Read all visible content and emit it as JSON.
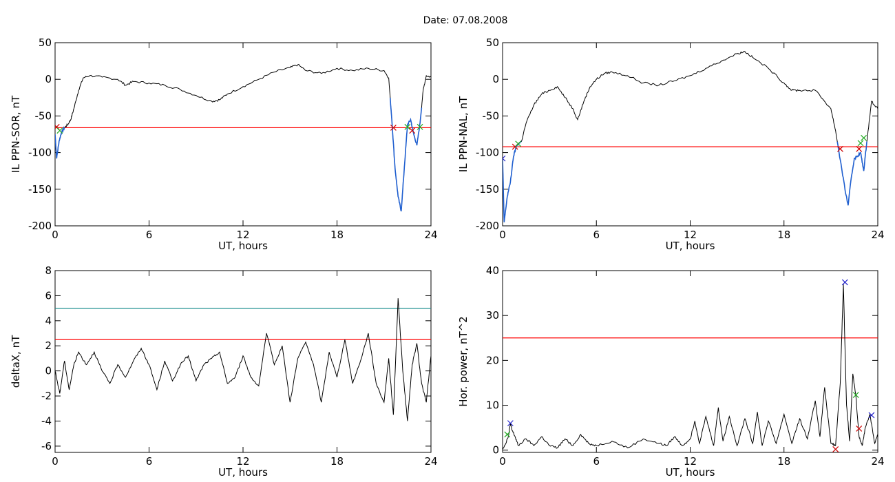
{
  "figure": {
    "title": "Date:  07.08.2008"
  },
  "chart_data": [
    {
      "id": "p1",
      "type": "line",
      "ylabel": "IL PPN-SOR, nT",
      "xlabel": "UT, hours",
      "xlim": [
        0,
        24
      ],
      "ylim": [
        -200,
        50
      ],
      "xticks": [
        0,
        6,
        12,
        18,
        24
      ],
      "yticks": [
        -200,
        -150,
        -100,
        -50,
        0,
        50
      ],
      "colors": {
        "line": "#000000",
        "highlight": "#1f5fd0",
        "threshold": "#ff0000"
      },
      "thresholds": [
        {
          "value": -66,
          "color": "#ff0000"
        }
      ],
      "series": [
        {
          "x": [
            0,
            0.1,
            0.25,
            0.4,
            0.6,
            0.8,
            1.0,
            1.2,
            1.5,
            1.8,
            2.2,
            3.0,
            4.0,
            4.5,
            5.0,
            6.0,
            7.0,
            8.0,
            9.0,
            10.0,
            10.5,
            11.0,
            12.0,
            13.0,
            14.0,
            15.0,
            15.5,
            16.0,
            17.0,
            18.0,
            19.0,
            20.0,
            21.0,
            21.3,
            21.5,
            21.7,
            21.9,
            22.1,
            22.3,
            22.5,
            22.7,
            22.9,
            23.1,
            23.3,
            23.5,
            23.7,
            24.0
          ],
          "values": [
            -75,
            -108,
            -85,
            -73,
            -66,
            -62,
            -55,
            -40,
            -15,
            2,
            5,
            3,
            0,
            -8,
            -3,
            -5,
            -8,
            -14,
            -22,
            -30,
            -28,
            -20,
            -10,
            0,
            10,
            16,
            20,
            12,
            8,
            15,
            12,
            15,
            12,
            2,
            -55,
            -120,
            -160,
            -180,
            -120,
            -62,
            -55,
            -75,
            -90,
            -60,
            -15,
            5,
            3
          ]
        }
      ],
      "highlight_ranges": [
        [
          0,
          0.6
        ],
        [
          21.4,
          23.4
        ]
      ],
      "markers": [
        {
          "x": 0.1,
          "y": -65,
          "color": "#cc0000"
        },
        {
          "x": 0.3,
          "y": -70,
          "color": "#22aa22"
        },
        {
          "x": 21.6,
          "y": -66,
          "color": "#cc0000"
        },
        {
          "x": 22.5,
          "y": -65,
          "color": "#22aa22"
        },
        {
          "x": 22.8,
          "y": -70,
          "color": "#cc0000"
        },
        {
          "x": 23.3,
          "y": -65,
          "color": "#22aa22"
        }
      ]
    },
    {
      "id": "p2",
      "type": "line",
      "ylabel": "IL PPN-NAL, nT",
      "xlabel": "UT, hours",
      "xlim": [
        0,
        24
      ],
      "ylim": [
        -200,
        50
      ],
      "xticks": [
        0,
        6,
        12,
        18,
        24
      ],
      "yticks": [
        -200,
        -150,
        -100,
        -50,
        0,
        50
      ],
      "colors": {
        "line": "#000000",
        "highlight": "#1f5fd0",
        "threshold": "#ff0000"
      },
      "thresholds": [
        {
          "value": -92,
          "color": "#ff0000"
        }
      ],
      "series": [
        {
          "x": [
            0,
            0.1,
            0.3,
            0.5,
            0.7,
            0.9,
            1.2,
            1.5,
            2.0,
            2.5,
            3.0,
            3.5,
            4.0,
            4.5,
            4.8,
            5.2,
            5.6,
            6.0,
            6.5,
            7.0,
            8.0,
            9.0,
            10.0,
            11.0,
            12.0,
            13.0,
            14.0,
            15.0,
            15.5,
            16.0,
            17.0,
            18.0,
            18.5,
            19.0,
            20.0,
            21.0,
            21.3,
            21.6,
            21.9,
            22.1,
            22.3,
            22.5,
            22.7,
            22.9,
            23.1,
            23.3,
            23.6,
            24.0
          ],
          "values": [
            -108,
            -195,
            -160,
            -140,
            -105,
            -90,
            -85,
            -60,
            -35,
            -20,
            -15,
            -10,
            -25,
            -40,
            -55,
            -30,
            -10,
            0,
            8,
            10,
            5,
            -5,
            -8,
            -2,
            5,
            15,
            25,
            35,
            38,
            30,
            15,
            -5,
            -15,
            -15,
            -15,
            -40,
            -70,
            -110,
            -150,
            -172,
            -135,
            -108,
            -105,
            -100,
            -125,
            -85,
            -30,
            -40
          ]
        }
      ],
      "highlight_ranges": [
        [
          0,
          1.2
        ],
        [
          21.4,
          23.3
        ]
      ],
      "markers": [
        {
          "x": 0.0,
          "y": -108,
          "color": "#2222cc"
        },
        {
          "x": 0.8,
          "y": -92,
          "color": "#cc0000"
        },
        {
          "x": 1.0,
          "y": -88,
          "color": "#22aa22"
        },
        {
          "x": 21.6,
          "y": -95,
          "color": "#cc0000"
        },
        {
          "x": 22.8,
          "y": -95,
          "color": "#cc0000"
        },
        {
          "x": 22.9,
          "y": -87,
          "color": "#22aa22"
        },
        {
          "x": 23.1,
          "y": -80,
          "color": "#22aa22"
        }
      ]
    },
    {
      "id": "p3",
      "type": "line",
      "ylabel": "deltaX, nT",
      "xlabel": "UT, hours",
      "xlim": [
        0,
        24
      ],
      "ylim": [
        -6.5,
        8
      ],
      "xticks": [
        0,
        6,
        12,
        18,
        24
      ],
      "yticks": [
        -6,
        -4,
        -2,
        0,
        2,
        4,
        6,
        8
      ],
      "colors": {
        "line": "#000000",
        "threshold": "#ff0000"
      },
      "thresholds": [
        {
          "value": 5.0,
          "color": "#1f9090"
        },
        {
          "value": 2.5,
          "color": "#ff0000"
        }
      ],
      "series": [
        {
          "x": [
            0,
            0.3,
            0.6,
            0.9,
            1.2,
            1.5,
            2.0,
            2.5,
            3.0,
            3.5,
            4.0,
            4.5,
            5.0,
            5.5,
            6.0,
            6.5,
            7.0,
            7.5,
            8.0,
            8.5,
            9.0,
            9.5,
            10.0,
            10.5,
            11.0,
            11.5,
            12.0,
            12.5,
            13.0,
            13.5,
            14.0,
            14.5,
            15.0,
            15.5,
            16.0,
            16.5,
            17.0,
            17.5,
            18.0,
            18.5,
            19.0,
            19.5,
            20.0,
            20.5,
            21.0,
            21.3,
            21.6,
            21.9,
            22.2,
            22.5,
            22.8,
            23.1,
            23.4,
            23.7,
            24.0
          ],
          "values": [
            0,
            -1.8,
            0.8,
            -1.5,
            0.5,
            1.5,
            0.5,
            1.5,
            0.0,
            -1.0,
            0.5,
            -0.5,
            0.8,
            1.8,
            0.5,
            -1.5,
            0.8,
            -0.8,
            0.5,
            1.2,
            -0.8,
            0.5,
            1.0,
            1.5,
            -1.0,
            -0.5,
            1.2,
            -0.5,
            -1.2,
            3.0,
            0.5,
            2.0,
            -2.5,
            1.0,
            2.3,
            0.5,
            -2.5,
            1.5,
            -0.5,
            2.5,
            -1.0,
            0.8,
            3.0,
            -1.0,
            -2.5,
            1.0,
            -3.5,
            5.8,
            0.0,
            -4.0,
            0.5,
            2.2,
            -1.0,
            -2.5,
            1.2
          ]
        }
      ]
    },
    {
      "id": "p4",
      "type": "line",
      "ylabel": "Hor. power, nT^2",
      "xlabel": "UT, hours",
      "xlim": [
        0,
        24
      ],
      "ylim": [
        -0.5,
        40
      ],
      "xticks": [
        0,
        6,
        12,
        18,
        24
      ],
      "yticks": [
        0,
        10,
        20,
        30,
        40
      ],
      "colors": {
        "line": "#000000",
        "threshold": "#ff0000"
      },
      "thresholds": [
        {
          "value": 25,
          "color": "#ff0000"
        }
      ],
      "series": [
        {
          "x": [
            0,
            0.2,
            0.4,
            0.5,
            0.6,
            0.8,
            1.0,
            1.5,
            2.0,
            2.5,
            3.0,
            3.5,
            4.0,
            4.5,
            5.0,
            5.5,
            6.0,
            7.0,
            8.0,
            9.0,
            10.0,
            10.5,
            11.0,
            11.5,
            12.0,
            12.3,
            12.6,
            13.0,
            13.5,
            13.8,
            14.1,
            14.5,
            15.0,
            15.5,
            16.0,
            16.3,
            16.6,
            17.0,
            17.5,
            18.0,
            18.5,
            19.0,
            19.5,
            20.0,
            20.3,
            20.6,
            21.0,
            21.3,
            21.6,
            21.8,
            22.0,
            22.2,
            22.4,
            22.6,
            22.8,
            23.0,
            23.2,
            23.5,
            23.8,
            24.0
          ],
          "values": [
            0.3,
            1.5,
            3.5,
            6.0,
            4.5,
            3.0,
            1.0,
            2.5,
            1.0,
            3.0,
            1.0,
            0.5,
            2.5,
            1.0,
            3.5,
            1.5,
            1.0,
            2.0,
            0.5,
            2.5,
            1.5,
            1.0,
            3.0,
            1.0,
            2.5,
            6.5,
            1.5,
            7.5,
            1.0,
            9.5,
            2.0,
            7.5,
            1.0,
            7.0,
            1.5,
            8.5,
            1.0,
            6.5,
            1.5,
            8.0,
            1.5,
            7.0,
            2.5,
            11.0,
            3.0,
            14.0,
            1.5,
            1.0,
            15.0,
            37.0,
            10.0,
            2.0,
            17.0,
            12.0,
            3.0,
            1.0,
            5.0,
            8.0,
            1.5,
            3.5
          ]
        }
      ],
      "markers": [
        {
          "x": 0.3,
          "y": 3.5,
          "color": "#22aa22"
        },
        {
          "x": 0.5,
          "y": 6.0,
          "color": "#2222cc"
        },
        {
          "x": 21.3,
          "y": 0.2,
          "color": "#cc0000"
        },
        {
          "x": 21.9,
          "y": 37.4,
          "color": "#2222cc"
        },
        {
          "x": 22.6,
          "y": 12.3,
          "color": "#22aa22"
        },
        {
          "x": 22.8,
          "y": 4.8,
          "color": "#cc0000"
        },
        {
          "x": 23.6,
          "y": 7.8,
          "color": "#2222cc"
        }
      ]
    }
  ]
}
